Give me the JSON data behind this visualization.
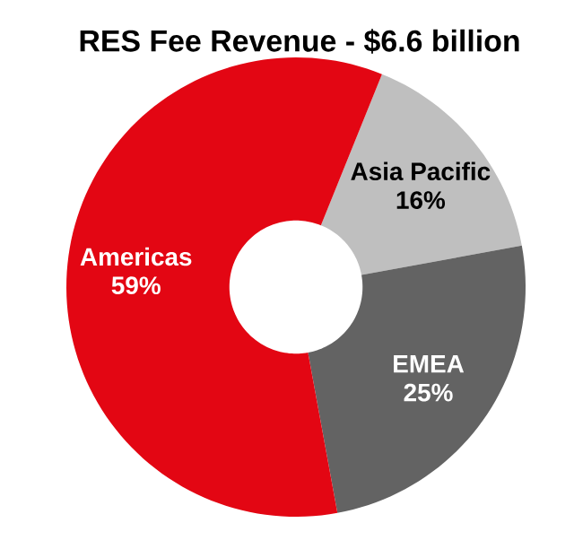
{
  "chart_data": {
    "type": "donut",
    "title": "RES Fee Revenue - $6.6 billion",
    "categories": [
      "Asia Pacific",
      "EMEA",
      "Americas"
    ],
    "values": [
      16,
      25,
      59
    ],
    "colors": [
      "#bfbfbf",
      "#636363",
      "#e30613"
    ],
    "value_labels": [
      "16%",
      "25%",
      "59%"
    ]
  }
}
